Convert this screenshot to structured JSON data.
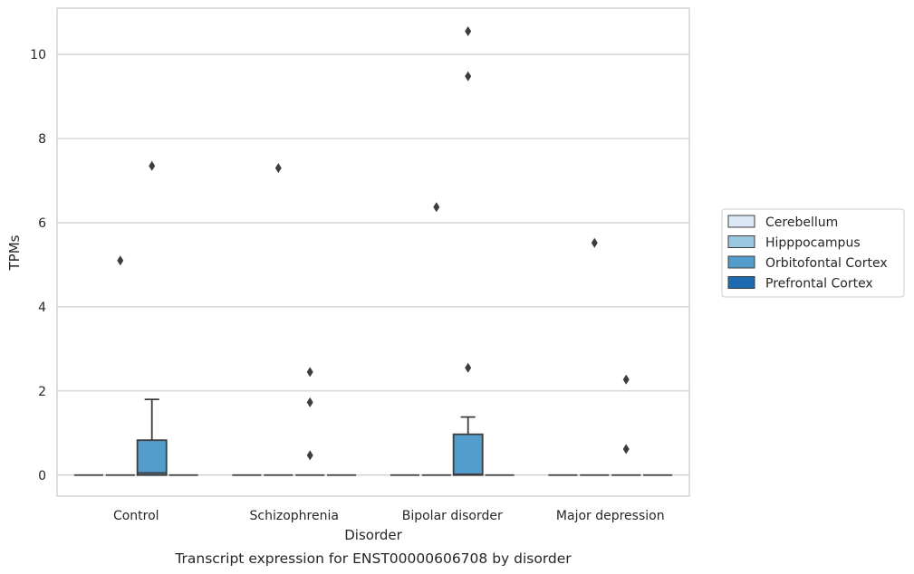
{
  "chart_data": {
    "type": "box",
    "title": "",
    "caption": "Transcript expression for ENST00000606708 by disorder",
    "xlabel": "Disorder",
    "ylabel": "TPMs",
    "ylim": [
      -0.5,
      11.1
    ],
    "yticks": [
      0,
      2,
      4,
      6,
      8,
      10
    ],
    "grid": "horizontal",
    "legend_position": "right",
    "categories": [
      "Control",
      "Schizophrenia",
      "Bipolar disorder",
      "Major depression"
    ],
    "series": [
      {
        "name": "Cerebellum",
        "color": "#dbe9f6",
        "boxes": [
          {
            "q1": 0,
            "median": 0,
            "q3": 0,
            "whislo": 0,
            "whishi": 0,
            "fliers": []
          },
          {
            "q1": 0,
            "median": 0,
            "q3": 0,
            "whislo": 0,
            "whishi": 0,
            "fliers": []
          },
          {
            "q1": 0,
            "median": 0,
            "q3": 0,
            "whislo": 0,
            "whishi": 0,
            "fliers": []
          },
          {
            "q1": 0,
            "median": 0,
            "q3": 0,
            "whislo": 0,
            "whishi": 0,
            "fliers": []
          }
        ]
      },
      {
        "name": "Hipppocampus",
        "color": "#9ac8e0",
        "boxes": [
          {
            "q1": 0,
            "median": 0,
            "q3": 0,
            "whislo": 0,
            "whishi": 0,
            "fliers": [
              5.1
            ]
          },
          {
            "q1": 0,
            "median": 0,
            "q3": 0,
            "whislo": 0,
            "whishi": 0,
            "fliers": [
              7.3
            ]
          },
          {
            "q1": 0,
            "median": 0,
            "q3": 0,
            "whislo": 0,
            "whishi": 0,
            "fliers": [
              6.37
            ]
          },
          {
            "q1": 0,
            "median": 0,
            "q3": 0,
            "whislo": 0,
            "whishi": 0,
            "fliers": [
              5.52
            ]
          }
        ]
      },
      {
        "name": "Orbitofontal Cortex",
        "color": "#529dcc",
        "boxes": [
          {
            "q1": 0,
            "median": 0.05,
            "q3": 0.83,
            "whislo": 0,
            "whishi": 1.8,
            "fliers": [
              7.35
            ]
          },
          {
            "q1": 0,
            "median": 0,
            "q3": 0,
            "whislo": 0,
            "whishi": 0,
            "fliers": [
              0.47,
              1.73,
              2.45
            ]
          },
          {
            "q1": 0,
            "median": 0.02,
            "q3": 0.97,
            "whislo": 0,
            "whishi": 1.38,
            "fliers": [
              2.55,
              9.48,
              10.55
            ]
          },
          {
            "q1": 0,
            "median": 0,
            "q3": 0,
            "whislo": 0,
            "whishi": 0,
            "fliers": [
              0.62,
              2.27
            ]
          }
        ]
      },
      {
        "name": "Prefrontal Cortex",
        "color": "#1c6aaf",
        "boxes": [
          {
            "q1": 0,
            "median": 0,
            "q3": 0,
            "whislo": 0,
            "whishi": 0,
            "fliers": []
          },
          {
            "q1": 0,
            "median": 0,
            "q3": 0,
            "whislo": 0,
            "whishi": 0,
            "fliers": []
          },
          {
            "q1": 0,
            "median": 0,
            "q3": 0,
            "whislo": 0,
            "whishi": 0,
            "fliers": []
          },
          {
            "q1": 0,
            "median": 0,
            "q3": 0,
            "whislo": 0,
            "whishi": 0,
            "fliers": []
          }
        ]
      }
    ]
  }
}
